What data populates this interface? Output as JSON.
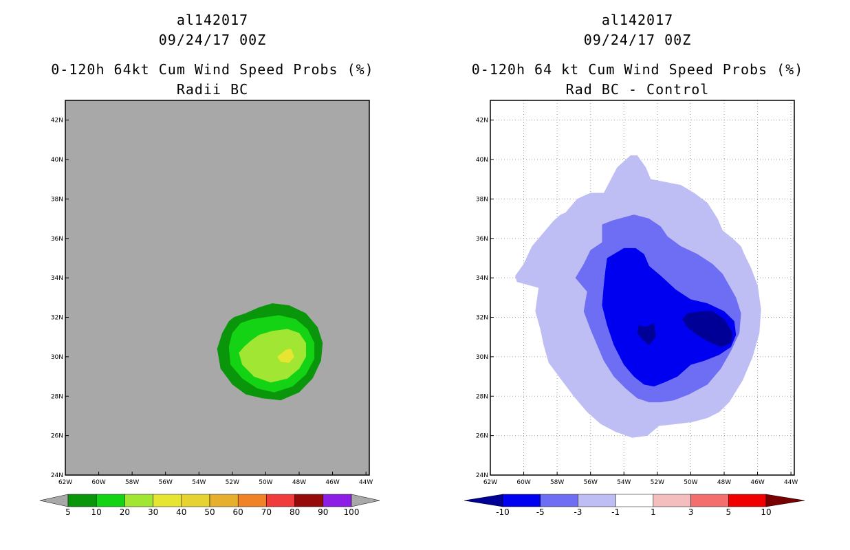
{
  "chart_data": [
    {
      "type": "filled-contour-map",
      "title_lines": [
        "al142017",
        "09/24/17 00Z",
        "0-120h 64kt Cum Wind Speed Probs (%)",
        "Radii BC"
      ],
      "xlabel": "",
      "ylabel": "",
      "xlim": [
        -62,
        -43.8
      ],
      "ylim": [
        24,
        43
      ],
      "x_ticks": [
        -62,
        -60,
        -58,
        -56,
        -54,
        -52,
        -50,
        -48,
        -46,
        -44
      ],
      "x_tick_labels": [
        "62W",
        "60W",
        "58W",
        "56W",
        "54W",
        "52W",
        "50W",
        "48W",
        "46W",
        "44W"
      ],
      "y_ticks": [
        24,
        26,
        28,
        30,
        32,
        34,
        36,
        38,
        40,
        42
      ],
      "y_tick_labels": [
        "24N",
        "26N",
        "28N",
        "30N",
        "32N",
        "34N",
        "36N",
        "38N",
        "40N",
        "42N"
      ],
      "grid": false,
      "background_color": "#a8a8a8",
      "colorbar": {
        "levels": [
          "5",
          "10",
          "20",
          "30",
          "40",
          "50",
          "60",
          "70",
          "80",
          "90",
          "100"
        ],
        "colors": [
          "#0a960a",
          "#14d214",
          "#a0e632",
          "#e6e632",
          "#e6d232",
          "#e6af2d",
          "#f08228",
          "#f03c3c",
          "#960a0a",
          "#8c1ee6"
        ],
        "under_color": "#a8a8a8",
        "over_color": "#a8a8a8"
      },
      "contours": [
        {
          "level": "5-10",
          "color": "#0a960a",
          "lon": [
            -51.9,
            -51.2,
            -50.4,
            -49.6,
            -48.6,
            -47.6,
            -46.9,
            -46.6,
            -46.7,
            -47.2,
            -48.0,
            -49.1,
            -50.2,
            -51.2,
            -52.0,
            -52.7,
            -52.9,
            -52.6,
            -52.2
          ],
          "lat": [
            32.0,
            32.2,
            32.5,
            32.7,
            32.6,
            32.2,
            31.5,
            30.7,
            29.8,
            28.9,
            28.2,
            27.8,
            27.9,
            28.1,
            28.6,
            29.4,
            30.4,
            31.2,
            31.8
          ]
        },
        {
          "level": "10-20",
          "color": "#14d214",
          "lon": [
            -51.5,
            -50.8,
            -50.0,
            -49.2,
            -48.2,
            -47.5,
            -47.1,
            -47.1,
            -47.6,
            -48.4,
            -49.5,
            -50.5,
            -51.4,
            -52.1,
            -52.2,
            -52.0
          ],
          "lat": [
            31.7,
            31.9,
            32.0,
            32.1,
            31.9,
            31.4,
            30.7,
            29.9,
            29.1,
            28.5,
            28.2,
            28.4,
            28.9,
            29.6,
            30.5,
            31.2
          ]
        },
        {
          "level": "20-30",
          "color": "#a0e632",
          "lon": [
            -50.9,
            -50.4,
            -49.6,
            -48.7,
            -48.0,
            -47.6,
            -47.6,
            -48.0,
            -48.7,
            -49.7,
            -50.7,
            -51.4,
            -51.6,
            -51.3
          ],
          "lat": [
            30.8,
            31.1,
            31.3,
            31.4,
            31.2,
            30.7,
            30.0,
            29.4,
            28.9,
            28.7,
            29.0,
            29.6,
            30.2,
            30.5
          ]
        },
        {
          "level": "30-40",
          "color": "#e6e632",
          "lon": [
            -48.8,
            -48.5,
            -48.3,
            -48.6,
            -49.1,
            -49.3,
            -49.0
          ],
          "lat": [
            30.35,
            30.4,
            30.0,
            29.7,
            29.75,
            30.0,
            30.2
          ]
        }
      ]
    },
    {
      "type": "filled-contour-map",
      "title_lines": [
        "al142017",
        "09/24/17 00Z",
        "0-120h 64 kt Cum Wind Speed Probs (%)",
        "Rad BC - Control"
      ],
      "xlabel": "",
      "ylabel": "",
      "xlim": [
        -62,
        -43.8
      ],
      "ylim": [
        24,
        43
      ],
      "x_ticks": [
        -62,
        -60,
        -58,
        -56,
        -54,
        -52,
        -50,
        -48,
        -46,
        -44
      ],
      "x_tick_labels": [
        "62W",
        "60W",
        "58W",
        "56W",
        "54W",
        "52W",
        "50W",
        "48W",
        "46W",
        "44W"
      ],
      "y_ticks": [
        24,
        26,
        28,
        30,
        32,
        34,
        36,
        38,
        40,
        42
      ],
      "y_tick_labels": [
        "24N",
        "26N",
        "28N",
        "30N",
        "32N",
        "34N",
        "36N",
        "38N",
        "40N",
        "42N"
      ],
      "grid": true,
      "background_color": "#ffffff",
      "colorbar": {
        "levels": [
          "-10",
          "-5",
          "-3",
          "-1",
          "1",
          "3",
          "5",
          "10"
        ],
        "colors": [
          "#0000f0",
          "#6e6ef5",
          "#bebef5",
          "#ffffff",
          "#f5bebe",
          "#f56e6e",
          "#f00000"
        ],
        "under_color": "#000096",
        "over_color": "#780000"
      },
      "contours": [
        {
          "level": "-3 to -1",
          "color": "#bebef5",
          "lon": [
            -57.5,
            -56.8,
            -56.0,
            -55.2,
            -54.4,
            -53.6,
            -53.2,
            -52.7,
            -52.4,
            -51.8,
            -50.6,
            -49.8,
            -49.0,
            -48.4,
            -48.1,
            -47.5,
            -47.0,
            -46.8,
            -46.4,
            -46.0,
            -45.8,
            -45.9,
            -46.3,
            -46.9,
            -47.7,
            -48.3,
            -49.0,
            -49.9,
            -50.8,
            -51.9,
            -52.6,
            -53.5,
            -54.5,
            -55.4,
            -56.2,
            -57.0,
            -57.8,
            -58.5,
            -58.8,
            -59.0,
            -59.3,
            -59.1,
            -60.4,
            -60.5,
            -60.0,
            -59.5,
            -58.8,
            -58.2,
            -57.8
          ],
          "lat": [
            37.3,
            38.0,
            38.3,
            38.3,
            39.6,
            40.2,
            40.2,
            39.6,
            39.0,
            38.9,
            38.7,
            38.3,
            37.8,
            37.0,
            36.4,
            36.0,
            35.6,
            35.2,
            34.5,
            33.6,
            32.4,
            31.2,
            30.0,
            28.8,
            27.7,
            27.2,
            26.9,
            26.7,
            26.6,
            26.5,
            26.0,
            25.9,
            26.2,
            26.6,
            27.2,
            28.0,
            28.9,
            29.7,
            30.6,
            31.4,
            32.3,
            33.5,
            33.8,
            34.1,
            34.7,
            35.6,
            36.3,
            36.9,
            37.2
          ]
        },
        {
          "level": "-5 to -3",
          "color": "#6e6ef5",
          "lon": [
            -56.0,
            -55.3,
            -55.3,
            -54.7,
            -53.4,
            -52.5,
            -51.8,
            -51.4,
            -50.6,
            -49.6,
            -48.7,
            -48.1,
            -47.7,
            -47.3,
            -47.0,
            -47.1,
            -47.6,
            -48.2,
            -49.0,
            -50.1,
            -51.0,
            -51.8,
            -52.5,
            -53.2,
            -53.9,
            -54.6,
            -55.2,
            -55.6,
            -56.0,
            -56.4,
            -56.2,
            -56.9,
            -56.4
          ],
          "lat": [
            35.4,
            35.8,
            36.7,
            36.9,
            37.2,
            37.0,
            36.6,
            36.1,
            35.6,
            35.2,
            34.7,
            34.2,
            33.6,
            33.0,
            32.2,
            31.2,
            30.3,
            29.4,
            28.6,
            28.1,
            27.8,
            27.7,
            27.7,
            27.9,
            28.4,
            29.0,
            29.8,
            30.6,
            31.4,
            32.3,
            33.3,
            34.0,
            34.7
          ]
        },
        {
          "level": "-10 to -5",
          "color": "#0000f0",
          "lon": [
            -55.0,
            -54.0,
            -53.3,
            -52.8,
            -52.5,
            -51.8,
            -50.9,
            -50.0,
            -49.0,
            -48.0,
            -47.4,
            -47.3,
            -47.6,
            -48.3,
            -49.2,
            -50.0,
            -50.8,
            -51.6,
            -52.2,
            -52.8,
            -53.4,
            -54.0,
            -54.6,
            -55.0,
            -55.3,
            -55.2,
            -55.1
          ],
          "lat": [
            35.0,
            35.5,
            35.5,
            35.2,
            34.6,
            34.1,
            33.4,
            32.9,
            32.7,
            32.3,
            31.8,
            31.1,
            30.5,
            30.1,
            29.8,
            29.6,
            29.0,
            28.7,
            28.5,
            28.6,
            29.0,
            29.6,
            30.6,
            31.6,
            32.6,
            33.6,
            34.4
          ]
        },
        {
          "level": "< -10",
          "color": "#000096",
          "lon": [
            -49.4,
            -48.7,
            -48.0,
            -47.5,
            -47.6,
            -48.2,
            -49.0,
            -49.6,
            -50.2,
            -50.5,
            -50.2
          ],
          "lat": [
            32.3,
            32.3,
            31.9,
            31.2,
            30.7,
            30.5,
            30.8,
            31.1,
            31.5,
            31.9,
            32.2
          ]
        },
        {
          "level": "< -10",
          "color": "#000096",
          "lon": [
            -53.1,
            -52.7,
            -52.2,
            -52.1,
            -52.5,
            -52.9,
            -53.2
          ],
          "lat": [
            31.6,
            31.5,
            31.7,
            31.0,
            30.6,
            30.9,
            31.2
          ]
        }
      ]
    }
  ]
}
